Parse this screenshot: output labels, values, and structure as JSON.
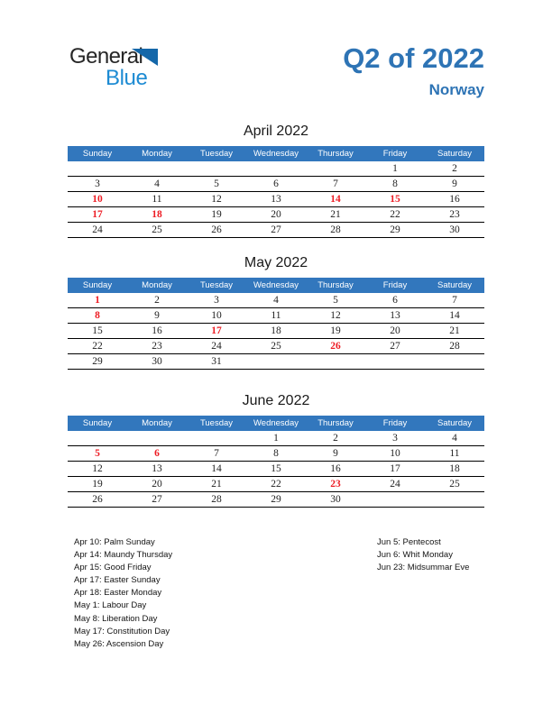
{
  "logo": {
    "general": "General",
    "blue": "Blue"
  },
  "header": {
    "title": "Q2 of 2022",
    "subtitle": "Norway"
  },
  "colors": {
    "title_blue": "#2e74b5",
    "band_blue": "#3277bd",
    "holiday_red": "#ed1c24",
    "logo_blue": "#1d8bd3",
    "logo_triangle": "#1467a9"
  },
  "day_headers": [
    "Sunday",
    "Monday",
    "Tuesday",
    "Wednesday",
    "Thursday",
    "Friday",
    "Saturday"
  ],
  "months": [
    {
      "title": "April 2022",
      "weeks": [
        [
          "",
          "",
          "",
          "",
          "",
          "1",
          "2"
        ],
        [
          "3",
          "4",
          "5",
          "6",
          "7",
          "8",
          "9"
        ],
        [
          "10",
          "11",
          "12",
          "13",
          "14",
          "15",
          "16"
        ],
        [
          "17",
          "18",
          "19",
          "20",
          "21",
          "22",
          "23"
        ],
        [
          "24",
          "25",
          "26",
          "27",
          "28",
          "29",
          "30"
        ]
      ],
      "red_days": [
        "10",
        "14",
        "15",
        "17",
        "18"
      ]
    },
    {
      "title": "May 2022",
      "weeks": [
        [
          "1",
          "2",
          "3",
          "4",
          "5",
          "6",
          "7"
        ],
        [
          "8",
          "9",
          "10",
          "11",
          "12",
          "13",
          "14"
        ],
        [
          "15",
          "16",
          "17",
          "18",
          "19",
          "20",
          "21"
        ],
        [
          "22",
          "23",
          "24",
          "25",
          "26",
          "27",
          "28"
        ],
        [
          "29",
          "30",
          "31",
          "",
          "",
          "",
          ""
        ]
      ],
      "red_days": [
        "1",
        "8",
        "17",
        "26"
      ]
    },
    {
      "title": "June 2022",
      "weeks": [
        [
          "",
          "",
          "",
          "1",
          "2",
          "3",
          "4"
        ],
        [
          "5",
          "6",
          "7",
          "8",
          "9",
          "10",
          "11"
        ],
        [
          "12",
          "13",
          "14",
          "15",
          "16",
          "17",
          "18"
        ],
        [
          "19",
          "20",
          "21",
          "22",
          "23",
          "24",
          "25"
        ],
        [
          "26",
          "27",
          "28",
          "29",
          "30",
          "",
          ""
        ]
      ],
      "red_days": [
        "5",
        "6",
        "23"
      ]
    }
  ],
  "holidays": {
    "left": [
      "Apr 10: Palm Sunday",
      "Apr 14: Maundy Thursday",
      "Apr 15: Good Friday",
      "Apr 17: Easter Sunday",
      "Apr 18: Easter Monday",
      "May 1: Labour Day",
      "May 8: Liberation Day",
      "May 17: Constitution Day",
      "May 26: Ascension Day"
    ],
    "right": [
      "Jun 5: Pentecost",
      "Jun 6: Whit Monday",
      "Jun 23: Midsummar Eve"
    ]
  }
}
